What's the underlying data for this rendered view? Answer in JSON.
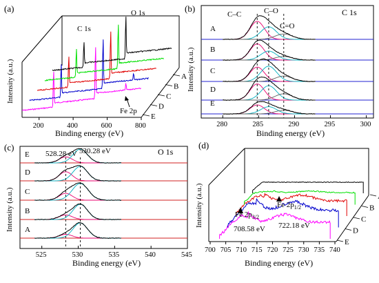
{
  "panels": {
    "a": {
      "label": "(a)",
      "xlabel": "Binding energy (eV)",
      "ylabel": "Intensity (a.u.)",
      "xticks": [
        "200",
        "400",
        "600",
        "800"
      ],
      "sample_labels": [
        "A",
        "B",
        "C",
        "D",
        "E"
      ],
      "annotations": [
        "C 1s",
        "O 1s",
        "Fe 2p"
      ]
    },
    "b": {
      "label": "(b)",
      "title": "C 1s",
      "xlabel": "Binding energy (eV)",
      "ylabel": "Intensity (a.u.)",
      "xticks": [
        "280",
        "285",
        "290",
        "295",
        "300"
      ],
      "sample_labels": [
        "A",
        "B",
        "C",
        "D",
        "E"
      ],
      "annotations": [
        "C–C",
        "C–O",
        "C=O"
      ]
    },
    "c": {
      "label": "(c)",
      "title": "O 1s",
      "xlabel": "Binding energy (eV)",
      "ylabel": "Intensity (a.u.)",
      "xticks": [
        "525",
        "530",
        "535",
        "540",
        "545"
      ],
      "sample_labels": [
        "A",
        "B",
        "C",
        "D",
        "E"
      ],
      "annotations": [
        "528.28 eV",
        "530.28 eV"
      ]
    },
    "d": {
      "label": "(d)",
      "xlabel": "Binding energy (eV)",
      "ylabel": "Intensity (a.u.)",
      "xticks": [
        "700",
        "705",
        "710",
        "715",
        "720",
        "725",
        "730",
        "735",
        "740"
      ],
      "sample_labels": [
        "A",
        "B",
        "C",
        "D",
        "E"
      ],
      "annotations": [
        "Fe 2p3/2",
        "Fe 2p1/2",
        "708.58 eV",
        "722.18 eV"
      ]
    }
  },
  "chart_data": [
    {
      "type": "line",
      "panel": "(a)",
      "xlabel": "Binding energy (eV)",
      "ylabel": "Intensity (a.u.)",
      "xlim": [
        100,
        800
      ],
      "series": [
        {
          "name": "A",
          "color": "#000000",
          "peaks": [
            {
              "x": 285,
              "label": "C 1s"
            },
            {
              "x": 531,
              "label": "O 1s"
            }
          ]
        },
        {
          "name": "B",
          "color": "#00e000",
          "peaks": [
            {
              "x": 285
            },
            {
              "x": 531
            }
          ]
        },
        {
          "name": "C",
          "color": "#e00000",
          "peaks": [
            {
              "x": 285
            },
            {
              "x": 531
            }
          ]
        },
        {
          "name": "D",
          "color": "#0000cc",
          "peaks": [
            {
              "x": 285
            },
            {
              "x": 531
            },
            {
              "x": 710
            }
          ]
        },
        {
          "name": "E",
          "color": "#ff00ff",
          "peaks": [
            {
              "x": 285
            },
            {
              "x": 531
            },
            {
              "x": 710,
              "label": "Fe 2p"
            }
          ]
        }
      ]
    },
    {
      "type": "line",
      "panel": "(b)",
      "title": "C 1s",
      "xlabel": "Binding energy (eV)",
      "ylabel": "Intensity (a.u.)",
      "xlim": [
        277,
        301
      ],
      "dashed_lines": [
        284.8,
        286.4,
        288.5
      ],
      "series": [
        {
          "name": "A",
          "components": [
            {
              "center": 284.8,
              "height": 1.0,
              "width": 1.0
            },
            {
              "center": 286.4,
              "height": 0.7,
              "width": 1.1
            },
            {
              "center": 288.5,
              "height": 0.3,
              "width": 1.2
            }
          ]
        },
        {
          "name": "B",
          "components": [
            {
              "center": 284.8,
              "height": 0.9,
              "width": 1.0
            },
            {
              "center": 286.4,
              "height": 0.5,
              "width": 1.1
            },
            {
              "center": 288.5,
              "height": 0.2,
              "width": 1.2
            }
          ]
        },
        {
          "name": "C",
          "components": [
            {
              "center": 284.8,
              "height": 0.8,
              "width": 1.0
            },
            {
              "center": 286.4,
              "height": 0.85,
              "width": 1.1
            },
            {
              "center": 288.5,
              "height": 0.3,
              "width": 1.2
            }
          ]
        },
        {
          "name": "D",
          "components": [
            {
              "center": 284.8,
              "height": 0.9,
              "width": 1.0
            },
            {
              "center": 286.4,
              "height": 0.8,
              "width": 1.1
            },
            {
              "center": 288.5,
              "height": 0.35,
              "width": 1.2
            }
          ]
        },
        {
          "name": "E",
          "components": [
            {
              "center": 284.8,
              "height": 0.5,
              "width": 1.0
            },
            {
              "center": 286.4,
              "height": 0.4,
              "width": 1.1
            },
            {
              "center": 288.5,
              "height": 0.2,
              "width": 1.2
            }
          ]
        }
      ]
    },
    {
      "type": "line",
      "panel": "(c)",
      "title": "O 1s",
      "xlabel": "Binding energy (eV)",
      "ylabel": "Intensity (a.u.)",
      "xlim": [
        522,
        545
      ],
      "dashed_lines": [
        528.28,
        530.28
      ],
      "series": [
        {
          "name": "A",
          "components": [
            {
              "center": 528.28,
              "height": 0.25,
              "width": 0.9
            },
            {
              "center": 530.28,
              "height": 1.0,
              "width": 1.0
            }
          ]
        },
        {
          "name": "B",
          "components": [
            {
              "center": 528.28,
              "height": 0.3,
              "width": 0.9
            },
            {
              "center": 530.28,
              "height": 1.0,
              "width": 1.0
            }
          ]
        },
        {
          "name": "C",
          "components": [
            {
              "center": 528.28,
              "height": 0.45,
              "width": 0.9
            },
            {
              "center": 530.28,
              "height": 1.1,
              "width": 1.1
            }
          ]
        },
        {
          "name": "D",
          "components": [
            {
              "center": 528.28,
              "height": 0.6,
              "width": 0.9
            },
            {
              "center": 530.28,
              "height": 0.95,
              "width": 1.0
            }
          ]
        },
        {
          "name": "E",
          "components": [
            {
              "center": 528.28,
              "height": 0.4,
              "width": 0.9
            },
            {
              "center": 530.28,
              "height": 0.9,
              "width": 1.0
            }
          ]
        }
      ]
    },
    {
      "type": "line",
      "panel": "(d)",
      "xlabel": "Binding energy (eV)",
      "ylabel": "Intensity (a.u.)",
      "xlim": [
        700,
        740
      ],
      "series": [
        {
          "name": "A",
          "color": "#000000"
        },
        {
          "name": "B",
          "color": "#00e000"
        },
        {
          "name": "C",
          "color": "#e00000"
        },
        {
          "name": "D",
          "color": "#0000cc"
        },
        {
          "name": "E",
          "color": "#ff00ff"
        }
      ],
      "peak_positions": [
        708.58,
        722.18
      ]
    }
  ]
}
